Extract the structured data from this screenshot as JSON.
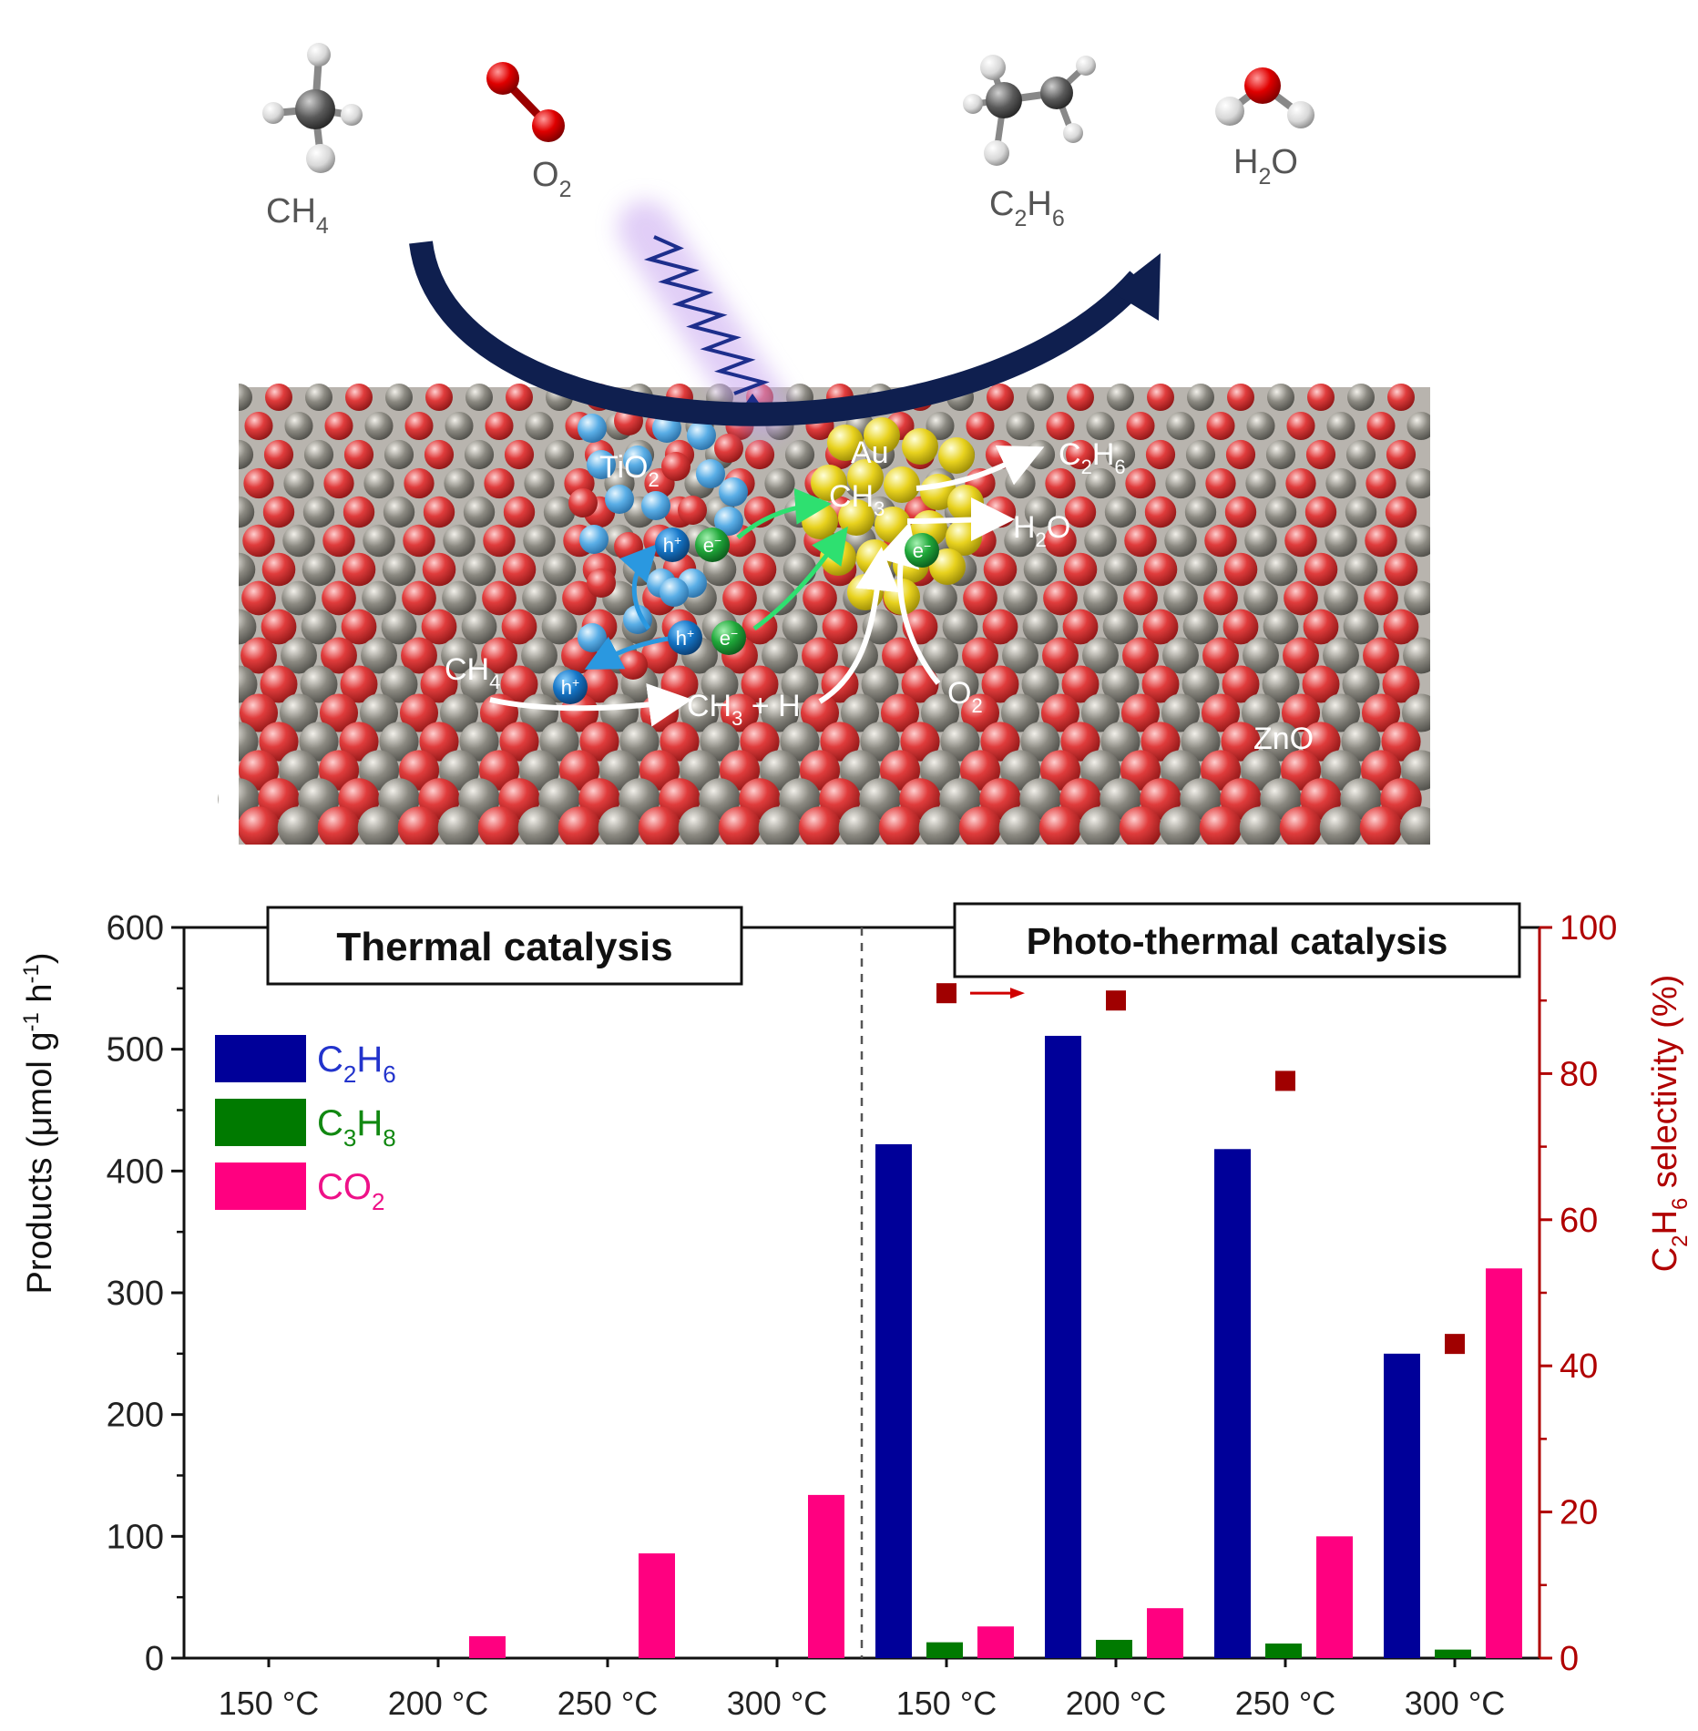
{
  "scene": {
    "molecules": {
      "ch4": {
        "formula": "CH",
        "sub": "4"
      },
      "o2": {
        "formula": "O",
        "sub": "2"
      },
      "c2h6": {
        "p1": "C",
        "s1": "2",
        "p2": "H",
        "s2": "6"
      },
      "h2o": {
        "p1": "H",
        "s1": "2",
        "p2": "O"
      }
    },
    "labels": {
      "au": "Au",
      "tio2": {
        "p1": "TiO",
        "s1": "2"
      },
      "ch3_on_au": {
        "p1": "CH",
        "s1": "3"
      },
      "c2h6_out": {
        "p1": "C",
        "s1": "2",
        "p2": "H",
        "s2": "6"
      },
      "h2o_out": {
        "p1": "H",
        "s1": "2",
        "p2": "O"
      },
      "ch4_in": {
        "p1": "CH",
        "s1": "4"
      },
      "ch3_h": {
        "p1": "CH",
        "s1": "3",
        "p2": " + H"
      },
      "o2_in": {
        "p1": "O",
        "s1": "2"
      },
      "zno": "ZnO",
      "hole": {
        "p1": "h",
        "s1": "+"
      },
      "electron": {
        "p1": "e",
        "s1": "−"
      }
    },
    "colors": {
      "zn_atom": "#8c8a82",
      "o_atom": "#e03c3c",
      "ti_atom": "#5aaee6",
      "au_atom": "#e8d21e",
      "arrow": "#0f1f4f",
      "light": "#1d2e8c"
    }
  },
  "chart_data": {
    "type": "bar",
    "categories": [
      "150 °C",
      "200 °C",
      "250 °C",
      "300 °C",
      "150 °C",
      "200 °C",
      "250 °C",
      "300 °C"
    ],
    "groups": [
      {
        "label": "Thermal catalysis",
        "categories": [
          0,
          1,
          2,
          3
        ]
      },
      {
        "label": "Photo-thermal catalysis",
        "categories": [
          4,
          5,
          6,
          7
        ]
      }
    ],
    "series": [
      {
        "name": {
          "p1": "C",
          "s1": "2",
          "p2": "H",
          "s2": "6"
        },
        "color": "#000099",
        "values": [
          0,
          0,
          0,
          0,
          422,
          511,
          418,
          250
        ]
      },
      {
        "name": {
          "p1": "C",
          "s1": "3",
          "p2": "H",
          "s2": "8"
        },
        "color": "#007a00",
        "values": [
          0,
          0,
          0,
          0,
          13,
          15,
          12,
          7
        ]
      },
      {
        "name": {
          "p1": "CO",
          "s1": "2"
        },
        "color": "#ff0080",
        "values": [
          0,
          18,
          86,
          134,
          26,
          41,
          100,
          320
        ]
      }
    ],
    "selectivity": {
      "color": "#a00000",
      "categories": [
        4,
        5,
        6,
        7
      ],
      "values": [
        91,
        90,
        79,
        43
      ]
    },
    "ylabel": {
      "p1": "Products (μmol g",
      "s1": "-1",
      "p2": " h",
      "s2": "-1",
      "p3": ")"
    },
    "y2label": {
      "p1": "C",
      "s1": "2",
      "p2": "H",
      "s2": "6",
      "p3": " selectivity (%)"
    },
    "ylim": [
      0,
      600
    ],
    "yticks": [
      "0",
      "100",
      "200",
      "300",
      "400",
      "500",
      "600"
    ],
    "y2lim": [
      0,
      100
    ],
    "y2ticks": [
      "0",
      "20",
      "40",
      "60",
      "80",
      "100"
    ],
    "legend": "top-left",
    "grid": false
  }
}
